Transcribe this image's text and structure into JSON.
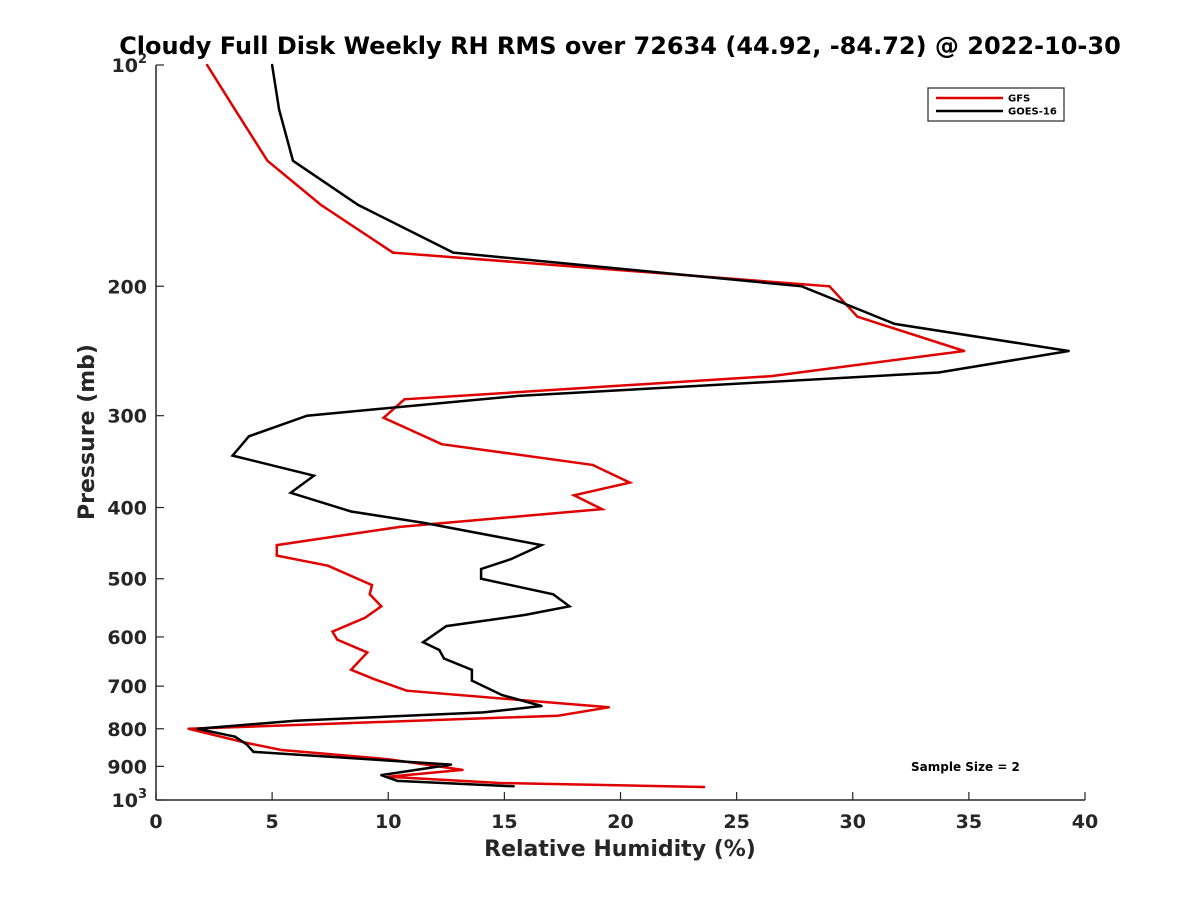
{
  "chart_data": {
    "type": "line",
    "title": "Cloudy Full Disk Weekly RH RMS over 72634 (44.92, -84.72) @ 2022-10-30",
    "xlabel": "Relative Humidity (%)",
    "ylabel": "Pressure (mb)",
    "xlim": [
      0,
      40
    ],
    "ylim": [
      100,
      1000
    ],
    "yscale": "log",
    "y_reversed": true,
    "x_ticks": [
      "0",
      "5",
      "10",
      "15",
      "20",
      "25",
      "30",
      "35",
      "40"
    ],
    "y_ticks": [
      {
        "value": 100,
        "base": "10",
        "exp": "2"
      },
      {
        "value": 200,
        "label": "200"
      },
      {
        "value": 300,
        "label": "300"
      },
      {
        "value": 400,
        "label": "400"
      },
      {
        "value": 500,
        "label": "500"
      },
      {
        "value": 600,
        "label": "600"
      },
      {
        "value": 700,
        "label": "700"
      },
      {
        "value": 800,
        "label": "800"
      },
      {
        "value": 900,
        "label": "900"
      },
      {
        "value": 1000,
        "base": "10",
        "exp": "3"
      }
    ],
    "grid": false,
    "legend_position": "top-right",
    "series": [
      {
        "name": "GFS",
        "color": "#e00000",
        "points": [
          [
            2.2,
            100
          ],
          [
            3.4,
            115
          ],
          [
            4.8,
            135
          ],
          [
            7.1,
            155
          ],
          [
            10.2,
            180
          ],
          [
            29.0,
            200
          ],
          [
            30.2,
            220
          ],
          [
            34.8,
            245
          ],
          [
            26.5,
            265
          ],
          [
            10.7,
            285
          ],
          [
            9.8,
            302
          ],
          [
            12.3,
            328
          ],
          [
            18.8,
            350
          ],
          [
            20.4,
            370
          ],
          [
            18.0,
            385
          ],
          [
            19.2,
            402
          ],
          [
            10.5,
            425
          ],
          [
            5.2,
            450
          ],
          [
            5.2,
            465
          ],
          [
            7.4,
            480
          ],
          [
            9.3,
            510
          ],
          [
            9.2,
            525
          ],
          [
            9.7,
            545
          ],
          [
            9.0,
            565
          ],
          [
            7.6,
            590
          ],
          [
            7.8,
            605
          ],
          [
            9.1,
            630
          ],
          [
            8.4,
            665
          ],
          [
            9.4,
            685
          ],
          [
            10.8,
            710
          ],
          [
            19.5,
            748
          ],
          [
            17.3,
            768
          ],
          [
            1.4,
            800
          ],
          [
            3.8,
            835
          ],
          [
            5.4,
            855
          ],
          [
            10.0,
            880
          ],
          [
            13.2,
            910
          ],
          [
            10.0,
            930
          ],
          [
            14.8,
            948
          ],
          [
            23.6,
            960
          ]
        ]
      },
      {
        "name": "GOES-16",
        "color": "#000000",
        "points": [
          [
            5.0,
            100
          ],
          [
            5.3,
            115
          ],
          [
            5.9,
            135
          ],
          [
            8.7,
            155
          ],
          [
            12.8,
            180
          ],
          [
            27.8,
            200
          ],
          [
            31.8,
            225
          ],
          [
            39.3,
            245
          ],
          [
            33.7,
            262
          ],
          [
            15.6,
            282
          ],
          [
            6.5,
            300
          ],
          [
            4.0,
            320
          ],
          [
            3.3,
            340
          ],
          [
            6.8,
            362
          ],
          [
            5.8,
            382
          ],
          [
            8.4,
            405
          ],
          [
            11.6,
            420
          ],
          [
            16.6,
            450
          ],
          [
            15.3,
            470
          ],
          [
            14.0,
            485
          ],
          [
            14.0,
            500
          ],
          [
            17.1,
            525
          ],
          [
            17.8,
            545
          ],
          [
            15.9,
            560
          ],
          [
            12.5,
            580
          ],
          [
            11.5,
            610
          ],
          [
            12.2,
            625
          ],
          [
            12.4,
            642
          ],
          [
            13.6,
            665
          ],
          [
            13.6,
            688
          ],
          [
            14.9,
            720
          ],
          [
            16.6,
            745
          ],
          [
            14.1,
            760
          ],
          [
            6.0,
            780
          ],
          [
            1.8,
            800
          ],
          [
            3.4,
            820
          ],
          [
            3.9,
            840
          ],
          [
            4.2,
            860
          ],
          [
            12.7,
            895
          ],
          [
            9.7,
            925
          ],
          [
            10.4,
            942
          ],
          [
            15.4,
            958
          ]
        ]
      }
    ],
    "annotation": "Sample Size = 2"
  }
}
